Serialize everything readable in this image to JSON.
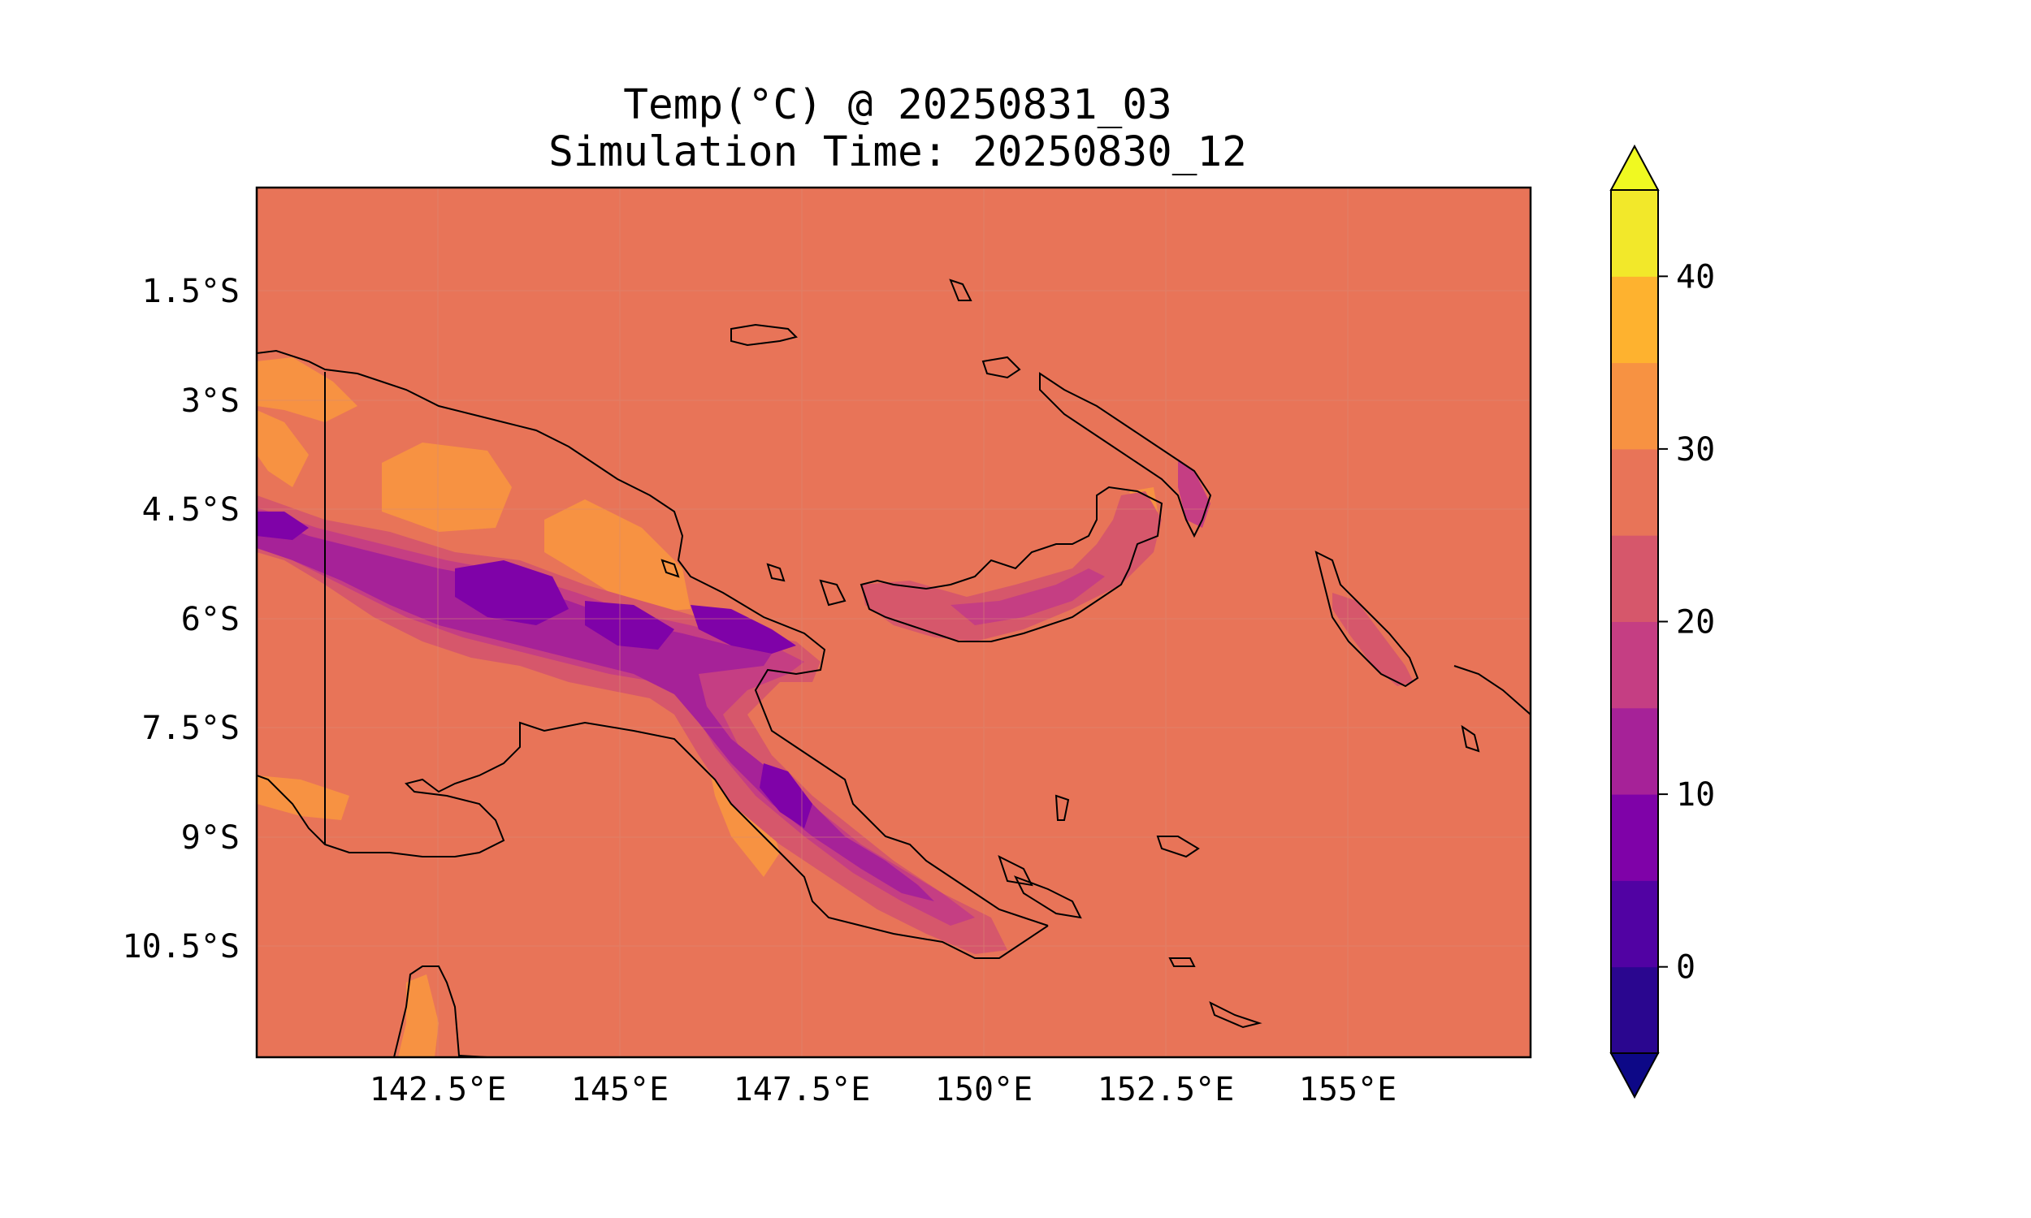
{
  "title_line1": "Temp(°C) @ 20250831_03",
  "title_line2": "Simulation Time: 20250830_12",
  "map": {
    "type": "filled-contour",
    "projection": "PlateCarree",
    "region_lon_range_deg": [
      140.0,
      157.5
    ],
    "region_lat_range_deg": [
      -12.0,
      -0.0
    ],
    "lon_ticks": [
      "142.5°E",
      "145°E",
      "147.5°E",
      "150°E",
      "152.5°E",
      "155°E"
    ],
    "lat_ticks": [
      "1.5°S",
      "3°S",
      "4.5°S",
      "6°S",
      "7.5°S",
      "9°S",
      "10.5°S"
    ],
    "gridlines": true,
    "coastlines": true,
    "ocean_color": "#e87458"
  },
  "colorbar": {
    "tick_labels": [
      "0",
      "10",
      "20",
      "30",
      "40"
    ],
    "tick_values": [
      0,
      10,
      20,
      30,
      40
    ],
    "level_bounds": [
      -5,
      45
    ],
    "extend": "both",
    "colors": [
      "#2a068f",
      "#5102a3",
      "#7f02a8",
      "#a62298",
      "#c53e83",
      "#d6576b",
      "#e87458",
      "#f79242",
      "#feb22f",
      "#f2e82a"
    ],
    "under_color": "#0d0887",
    "over_color": "#f0f921"
  }
}
